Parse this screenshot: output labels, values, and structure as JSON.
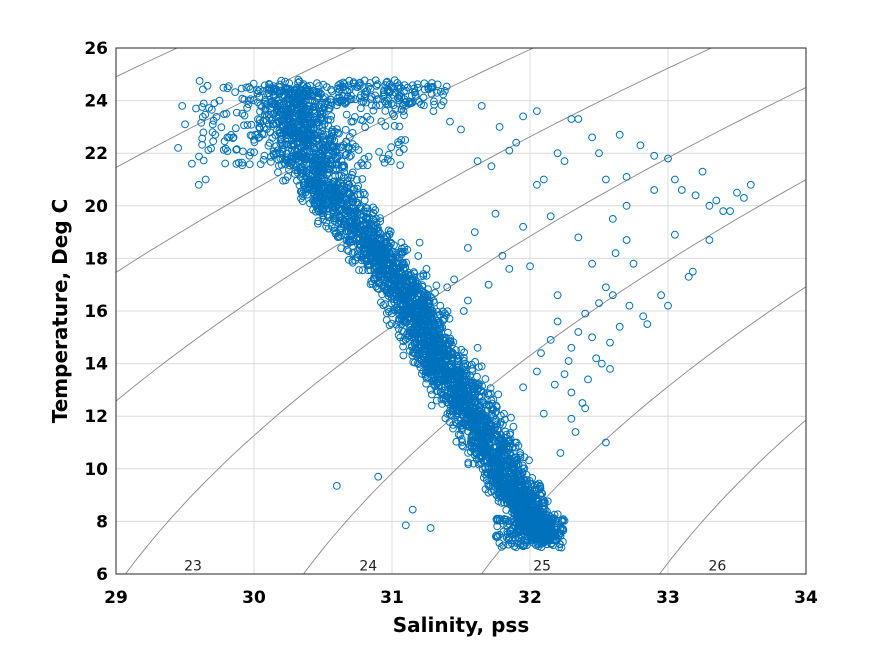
{
  "chart_data": {
    "type": "scatter",
    "title": "",
    "xlabel": "Salinity, pss",
    "ylabel": "Temperature, Deg C",
    "xlim": [
      29,
      34
    ],
    "ylim": [
      6,
      26
    ],
    "xticks": [
      "29",
      "30",
      "31",
      "32",
      "33",
      "34"
    ],
    "yticks": [
      "6",
      "8",
      "10",
      "12",
      "14",
      "16",
      "18",
      "20",
      "22",
      "24",
      "26"
    ],
    "grid": true,
    "legend": "none",
    "marker": "open-circle",
    "marker_color": "#0072BD",
    "contour_color": "#888888",
    "grid_color": "#dcdcdc",
    "density_contours": [
      {
        "label": "23",
        "sigma": 23,
        "label_at": [
          29.45,
          6.25
        ]
      },
      {
        "label": "24",
        "sigma": 24,
        "label_at": [
          30.72,
          6.25
        ]
      },
      {
        "label": "25",
        "sigma": 25,
        "label_at": [
          31.98,
          6.25
        ]
      },
      {
        "label": "26",
        "sigma": 26,
        "label_at": [
          33.25,
          6.25
        ]
      }
    ],
    "dense_band_ridge": [
      [
        30.25,
        24.6
      ],
      [
        30.35,
        22.6
      ],
      [
        30.55,
        20.5
      ],
      [
        30.85,
        18.5
      ],
      [
        31.1,
        16.7
      ],
      [
        31.25,
        15.0
      ],
      [
        31.45,
        13.3
      ],
      [
        31.65,
        11.5
      ],
      [
        31.85,
        9.6
      ],
      [
        32.0,
        8.2
      ],
      [
        32.1,
        7.3
      ]
    ],
    "dense_band_halfwidth": [
      0.42,
      0.42,
      0.35,
      0.3,
      0.27,
      0.28,
      0.3,
      0.3,
      0.26,
      0.22,
      0.16
    ],
    "series": [
      {
        "x": [
          29.45,
          29.5,
          29.58,
          29.65,
          29.7,
          29.55,
          29.48,
          29.6,
          29.75,
          29.8,
          30.6,
          30.9,
          31.15,
          31.3,
          31.42,
          31.5,
          31.65,
          31.72,
          31.85,
          31.95,
          32.05,
          32.25,
          32.35,
          32.45,
          32.55,
          32.65,
          32.7,
          32.8,
          32.9,
          33.0,
          33.1,
          33.2,
          33.3,
          33.4,
          33.5,
          33.6,
          33.25,
          33.05,
          32.9,
          32.7,
          32.6,
          32.5,
          32.3,
          32.2,
          32.1,
          32.05,
          31.95,
          31.85,
          31.75,
          31.6,
          31.55,
          31.45,
          31.35,
          31.62,
          31.78,
          31.9,
          32.15,
          32.35,
          32.45,
          32.55,
          32.62,
          32.7,
          32.75,
          32.6,
          32.5,
          32.4,
          32.35,
          32.3,
          32.28,
          32.2,
          32.15,
          32.25,
          32.18,
          32.3,
          32.4,
          32.42,
          32.52,
          32.58,
          32.65,
          32.72,
          32.82,
          32.95,
          33.15,
          33.0,
          32.85,
          32.45,
          32.2,
          32.0,
          31.8,
          31.7,
          31.55,
          31.4,
          31.2,
          31.25,
          31.38,
          31.52,
          31.62,
          32.3,
          32.33,
          32.22,
          32.38,
          32.1,
          32.05,
          32.55,
          33.05,
          33.18,
          33.35,
          33.45,
          33.55,
          33.3,
          31.1,
          31.28,
          31.95,
          32.08,
          32.48,
          32.58,
          31.72,
          31.88
        ],
        "y": [
          22.2,
          23.1,
          23.7,
          21.0,
          22.8,
          21.6,
          23.8,
          20.8,
          24.0,
          23.5,
          9.35,
          9.7,
          8.45,
          23.6,
          23.2,
          22.9,
          23.8,
          21.5,
          22.1,
          23.4,
          23.6,
          21.7,
          23.3,
          22.6,
          21.0,
          22.7,
          21.1,
          22.3,
          21.9,
          21.8,
          20.6,
          20.4,
          20.0,
          19.8,
          20.5,
          20.8,
          21.3,
          21.0,
          20.6,
          20.0,
          19.5,
          22.0,
          23.3,
          22.0,
          21.0,
          20.8,
          19.2,
          17.6,
          19.7,
          19.0,
          18.4,
          17.2,
          16.2,
          21.7,
          23.0,
          22.4,
          19.6,
          18.8,
          17.8,
          16.9,
          18.2,
          18.7,
          17.8,
          16.6,
          16.3,
          15.9,
          15.2,
          14.6,
          14.1,
          15.6,
          14.9,
          13.6,
          13.2,
          12.9,
          12.3,
          13.4,
          14.0,
          14.8,
          15.4,
          16.2,
          15.8,
          16.6,
          17.3,
          16.2,
          15.5,
          15.0,
          16.6,
          17.7,
          18.1,
          17.0,
          16.4,
          16.9,
          18.6,
          17.6,
          15.7,
          16.0,
          14.6,
          11.9,
          11.4,
          10.6,
          12.5,
          12.1,
          13.7,
          11.0,
          18.9,
          17.5,
          20.2,
          19.8,
          20.3,
          18.7,
          7.85,
          7.75,
          13.1,
          14.4,
          14.2,
          13.8,
          12.6,
          11.6
        ]
      }
    ]
  }
}
